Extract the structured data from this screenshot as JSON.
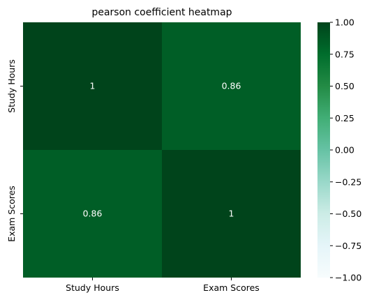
{
  "chart_data": {
    "type": "heatmap",
    "title": "pearson coefficient heatmap",
    "x_labels": [
      "Study Hours",
      "Exam Scores"
    ],
    "y_labels": [
      "Study Hours",
      "Exam Scores"
    ],
    "values": [
      [
        1,
        0.86
      ],
      [
        0.86,
        1
      ]
    ],
    "cell_labels": [
      [
        "1",
        "0.86"
      ],
      [
        "0.86",
        "1"
      ]
    ],
    "value_range": [
      -1.0,
      1.0
    ],
    "colormap": "BuGn",
    "colorbar": {
      "ticks": [
        1.0,
        0.75,
        0.5,
        0.25,
        0.0,
        -0.25,
        -0.5,
        -0.75,
        -1.0
      ],
      "tick_labels": [
        "1.00",
        "0.75",
        "0.50",
        "0.25",
        "0.00",
        "−0.25",
        "−0.50",
        "−0.75",
        "−1.00"
      ]
    },
    "colors": {
      "cell_diagonal": "#00441b",
      "cell_offdiagonal": "#005e26",
      "cell_text": "#ffffff"
    }
  }
}
